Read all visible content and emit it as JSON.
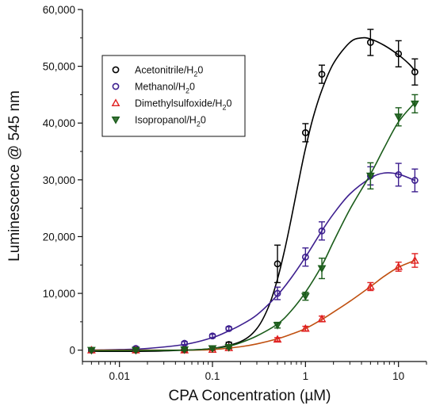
{
  "chart_data": {
    "type": "scatter",
    "title": "",
    "xlabel": "CPA Concentration (µM)",
    "ylabel": "Luminescence @ 545 nm",
    "x_scale": "log",
    "xlim": [
      0.004,
      20
    ],
    "ylim": [
      -2000,
      60000
    ],
    "x_ticks": [
      0.01,
      0.1,
      1,
      10
    ],
    "x_tick_labels": [
      "0.01",
      "0.1",
      "1",
      "10"
    ],
    "y_ticks": [
      0,
      10000,
      20000,
      30000,
      40000,
      50000,
      60000
    ],
    "y_tick_labels": [
      "0",
      "10,000",
      "20,000",
      "30,000",
      "40,000",
      "50,000",
      "60,000"
    ],
    "grid": false,
    "legend_position": "top-left",
    "series": [
      {
        "name": "Acetonitrile/H₂0",
        "legend_main": "Acetonitrile/H",
        "legend_sub": "2",
        "legend_end": "0",
        "color": "#000000",
        "marker": "circle",
        "x": [
          0.005,
          0.015,
          0.05,
          0.15,
          0.5,
          1.0,
          1.5,
          5,
          10,
          15
        ],
        "y": [
          0,
          0,
          100,
          1000,
          15200,
          38300,
          48600,
          54200,
          52200,
          49000
        ],
        "err": [
          300,
          300,
          300,
          400,
          3300,
          1600,
          1600,
          2300,
          2300,
          2300
        ],
        "curve_x": [
          0.005,
          0.02,
          0.05,
          0.1,
          0.2,
          0.3,
          0.4,
          0.5,
          0.6,
          0.7,
          0.8,
          0.9,
          1.0,
          1.2,
          1.5,
          2,
          3,
          4,
          5,
          7,
          10,
          13,
          15
        ],
        "curve_y": [
          -200,
          -200,
          0,
          300,
          1500,
          3800,
          7600,
          12500,
          17800,
          23000,
          27800,
          32000,
          35500,
          40800,
          45800,
          50500,
          54200,
          55000,
          54800,
          53700,
          52000,
          50400,
          49200
        ]
      },
      {
        "name": "Methanol/H₂0",
        "legend_main": "Methanol/H",
        "legend_sub": "2",
        "legend_end": "0",
        "color": "#3d1f8f",
        "marker": "circle",
        "x": [
          0.005,
          0.015,
          0.05,
          0.1,
          0.15,
          0.5,
          1.0,
          1.5,
          5,
          10,
          15
        ],
        "y": [
          0,
          300,
          1200,
          2500,
          3800,
          10000,
          16400,
          21000,
          30700,
          30900,
          29900
        ],
        "err": [
          300,
          300,
          300,
          300,
          300,
          1100,
          1600,
          1600,
          1600,
          2000,
          2000
        ],
        "curve_x": [
          0.005,
          0.01,
          0.02,
          0.05,
          0.1,
          0.15,
          0.2,
          0.3,
          0.5,
          0.7,
          1.0,
          1.5,
          2,
          3,
          5,
          7,
          10,
          15
        ],
        "curve_y": [
          0,
          100,
          300,
          1000,
          2200,
          3400,
          4400,
          6200,
          9700,
          12700,
          16400,
          21000,
          24000,
          27500,
          30300,
          31200,
          31000,
          29900
        ]
      },
      {
        "name": "Dimethylsulfoxide/H₂0",
        "legend_main": "Dimethylsulfoxide/H",
        "legend_sub": "2",
        "legend_end": "0",
        "color": "#e02020",
        "line_color": "#c05010",
        "marker": "triangle-up",
        "x": [
          0.005,
          0.015,
          0.05,
          0.1,
          0.15,
          0.5,
          1.0,
          1.5,
          5,
          10,
          15
        ],
        "y": [
          0,
          0,
          0,
          100,
          400,
          1900,
          3800,
          5500,
          11200,
          14700,
          15800
        ],
        "err": [
          200,
          200,
          200,
          200,
          200,
          300,
          400,
          500,
          700,
          800,
          1200
        ],
        "curve_x": [
          0.005,
          0.05,
          0.1,
          0.2,
          0.3,
          0.5,
          0.7,
          1.0,
          1.5,
          2,
          3,
          5,
          7,
          10,
          15
        ],
        "curve_y": [
          0,
          0,
          100,
          600,
          1100,
          2000,
          2800,
          3800,
          5400,
          6700,
          8600,
          11200,
          13000,
          14600,
          15800
        ]
      },
      {
        "name": "Isopropanol/H₂0",
        "legend_main": "Isopropanol/H",
        "legend_sub": "2",
        "legend_end": "0",
        "color": "#1a5c1a",
        "marker": "triangle-down",
        "x": [
          0.005,
          0.015,
          0.05,
          0.1,
          0.15,
          0.5,
          1.0,
          1.5,
          5,
          10,
          15
        ],
        "y": [
          0,
          0,
          100,
          300,
          500,
          4400,
          9500,
          14400,
          30700,
          41100,
          43400
        ],
        "err": [
          200,
          200,
          200,
          200,
          200,
          500,
          700,
          1800,
          2300,
          1600,
          1600
        ],
        "curve_x": [
          0.005,
          0.05,
          0.1,
          0.15,
          0.2,
          0.3,
          0.5,
          0.7,
          1.0,
          1.5,
          2,
          3,
          5,
          7,
          10,
          15
        ],
        "curve_y": [
          -100,
          0,
          300,
          700,
          1300,
          2500,
          4600,
          6900,
          10200,
          14900,
          19100,
          24800,
          31000,
          35600,
          40200,
          43600
        ]
      }
    ]
  }
}
